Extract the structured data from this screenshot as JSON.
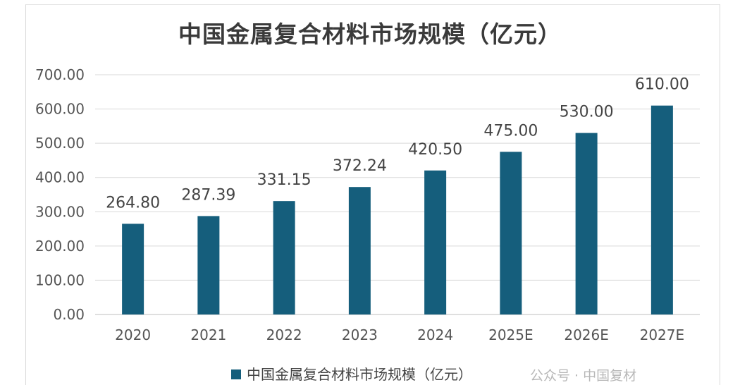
{
  "chart_data": {
    "type": "bar",
    "title": "中国金属复合材料市场规模（亿元）",
    "categories": [
      "2020",
      "2021",
      "2022",
      "2023",
      "2024",
      "2025E",
      "2026E",
      "2027E"
    ],
    "series": [
      {
        "name": "中国金属复合材料市场规模（亿元）",
        "values": [
          264.8,
          287.39,
          331.15,
          372.24,
          420.5,
          475.0,
          530.0,
          610.0
        ],
        "value_labels": [
          "264.80",
          "287.39",
          "331.15",
          "372.24",
          "420.50",
          "475.00",
          "530.00",
          "610.00"
        ]
      }
    ],
    "yticks": [
      "0.00",
      "100.00",
      "200.00",
      "300.00",
      "400.00",
      "500.00",
      "600.00",
      "700.00"
    ],
    "ylim": [
      0,
      700
    ],
    "grid": true,
    "legend_position": "bottom",
    "bar_color": "#155e7c"
  },
  "watermark": "公众号 · 中国复材"
}
